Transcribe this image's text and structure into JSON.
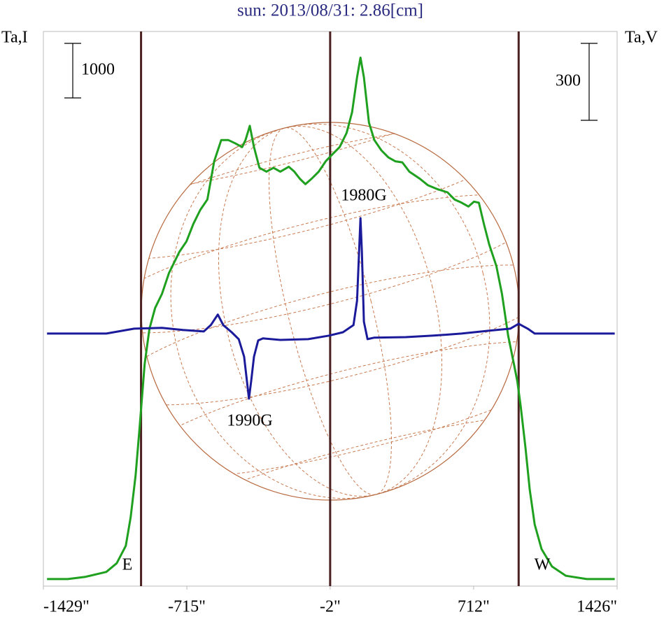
{
  "chart_data": {
    "type": "line",
    "title": "sun: 2013/08/31: 2.86[cm]",
    "y_label": "Ta,I",
    "y2_label": "Ta,V",
    "y_scale_bar": 1000,
    "y2_scale_bar": 300,
    "xlim": [
      -1429,
      1426
    ],
    "xticks": [
      {
        "value": -1429,
        "label": "-1429\""
      },
      {
        "value": -715,
        "label": "-715\""
      },
      {
        "value": -2,
        "label": "-2\""
      },
      {
        "value": 712,
        "label": "712\""
      },
      {
        "value": 1426,
        "label": "1426\""
      }
    ],
    "ylim": [
      0,
      10170
    ],
    "y2lim": [
      -985,
      1178
    ],
    "vlines": [
      -943,
      -2,
      936
    ],
    "annotations": [
      "1980G",
      "1990G",
      "E",
      "W"
    ],
    "series": [
      {
        "name": "I",
        "color": "#1fa01f",
        "x": [
          -1411,
          -1307,
          -1220,
          -1116,
          -1064,
          -1019,
          -995,
          -970,
          -950,
          -925,
          -901,
          -873,
          -839,
          -804,
          -752,
          -717,
          -683,
          -648,
          -613,
          -579,
          -544,
          -509,
          -475,
          -440,
          -423,
          -402,
          -381,
          -354,
          -319,
          -284,
          -250,
          -208,
          -180,
          -153,
          -125,
          -94,
          -59,
          -24,
          10,
          45,
          80,
          107,
          132,
          149,
          166,
          191,
          218,
          253,
          288,
          322,
          357,
          392,
          444,
          485,
          530,
          582,
          617,
          652,
          686,
          714,
          738,
          763,
          790,
          825,
          853,
          884,
          912,
          929,
          946,
          970,
          991,
          1016,
          1050,
          1102,
          1171,
          1275,
          1414
        ],
        "values": [
          130,
          130,
          170,
          260,
          420,
          740,
          1260,
          2030,
          2920,
          4080,
          4720,
          5100,
          5360,
          5740,
          6130,
          6320,
          6640,
          6900,
          7090,
          7790,
          8180,
          8180,
          8120,
          8050,
          8180,
          8440,
          8050,
          7670,
          7600,
          7670,
          7600,
          7690,
          7600,
          7470,
          7370,
          7470,
          7600,
          7790,
          7920,
          8050,
          8310,
          8690,
          9330,
          9690,
          9330,
          8500,
          8180,
          7990,
          7860,
          7790,
          7770,
          7600,
          7470,
          7350,
          7280,
          7220,
          7090,
          7030,
          6960,
          7050,
          7030,
          6640,
          6260,
          5870,
          5360,
          4590,
          4080,
          3760,
          3310,
          2540,
          1770,
          1130,
          680,
          360,
          190,
          130,
          130
        ]
      },
      {
        "name": "V",
        "color": "#1a1a9a",
        "axis": "y2",
        "x": [
          -1411,
          -1116,
          -977,
          -839,
          -735,
          -631,
          -596,
          -561,
          -534,
          -492,
          -457,
          -430,
          -416,
          -406,
          -395,
          -381,
          -360,
          -336,
          -250,
          -111,
          -7,
          62,
          114,
          132,
          142,
          149,
          156,
          166,
          184,
          218,
          374,
          513,
          652,
          790,
          894,
          936,
          981,
          1016,
          1414
        ],
        "values": [
          0,
          0,
          19,
          22,
          14,
          8,
          33,
          74,
          33,
          5,
          -22,
          -90,
          -185,
          -254,
          -185,
          -90,
          -27,
          -19,
          -25,
          -22,
          -8,
          5,
          33,
          128,
          319,
          450,
          319,
          46,
          -22,
          -16,
          -14,
          -8,
          0,
          11,
          19,
          38,
          19,
          0,
          0
        ]
      }
    ]
  }
}
